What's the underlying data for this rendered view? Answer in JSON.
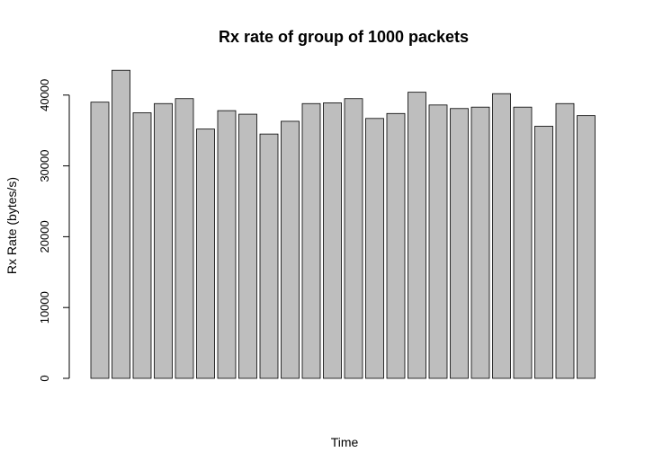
{
  "chart_data": {
    "type": "bar",
    "title": "Rx rate of group of 1000 packets",
    "xlabel": "Time",
    "ylabel": "Rx Rate (bytes/s)",
    "ylim": [
      0,
      45000
    ],
    "yticks": [
      0,
      10000,
      20000,
      30000,
      40000
    ],
    "ytick_labels": [
      "0",
      "10000",
      "20000",
      "30000",
      "40000"
    ],
    "values": [
      39000,
      43500,
      37500,
      38800,
      39500,
      35200,
      37800,
      37300,
      34500,
      36300,
      38800,
      38900,
      39500,
      36700,
      37400,
      40400,
      38600,
      38100,
      38300,
      40200,
      38300,
      35600,
      38800,
      37100
    ],
    "bar_color": "#bebebe",
    "grid": false,
    "legend": "none"
  }
}
